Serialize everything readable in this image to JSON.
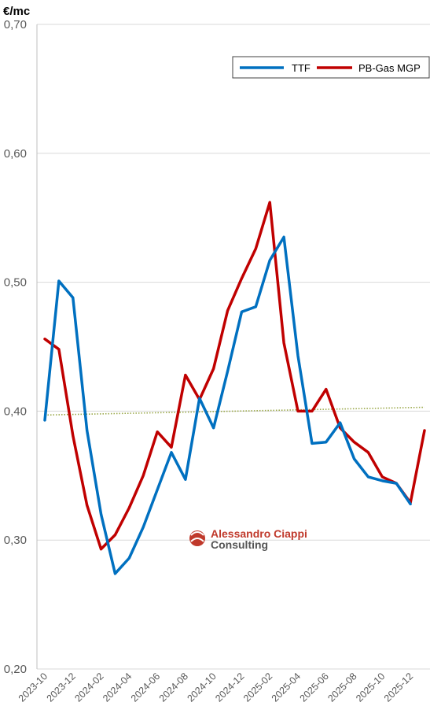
{
  "chart_data": {
    "type": "line",
    "unit_label": "€/mc",
    "ylim": [
      0.2,
      0.7
    ],
    "y_ticks": [
      "0,20",
      "0,30",
      "0,40",
      "0,50",
      "0,60",
      "0,70"
    ],
    "x_tick_labels": [
      "2023-10",
      "2023-12",
      "2024-02",
      "2024-04",
      "2024-06",
      "2024-08",
      "2024-10",
      "2024-12",
      "2025-02",
      "2025-04",
      "2025-06",
      "2025-08",
      "2025-10",
      "2025-12"
    ],
    "x": [
      "2023-10",
      "2023-11",
      "2023-12",
      "2024-01",
      "2024-02",
      "2024-03",
      "2024-04",
      "2024-05",
      "2024-06",
      "2024-07",
      "2024-08",
      "2024-09",
      "2024-10",
      "2024-11",
      "2024-12",
      "2025-01",
      "2025-02",
      "2025-03",
      "2025-04",
      "2025-05",
      "2025-06",
      "2025-07",
      "2025-08",
      "2025-09",
      "2025-10",
      "2025-11",
      "2025-12",
      "2026-01"
    ],
    "grid": true,
    "legend_position": "top-right",
    "series": [
      {
        "name": "TTF",
        "color": "#0070c0",
        "values": [
          0.393,
          0.501,
          0.488,
          0.385,
          0.32,
          0.274,
          0.286,
          0.31,
          0.339,
          0.368,
          0.347,
          0.41,
          0.387,
          0.431,
          0.477,
          0.481,
          0.517,
          0.535,
          0.443,
          0.375,
          0.376,
          0.391,
          0.363,
          0.349,
          0.346,
          0.344,
          0.328,
          null
        ]
      },
      {
        "name": "PB-Gas MGP",
        "color": "#c00000",
        "values": [
          0.456,
          0.448,
          0.381,
          0.327,
          0.293,
          0.304,
          0.325,
          0.35,
          0.384,
          0.372,
          0.428,
          0.409,
          0.433,
          0.478,
          0.503,
          0.526,
          0.562,
          0.453,
          0.4,
          0.4,
          0.417,
          0.387,
          0.376,
          0.368,
          0.349,
          0.344,
          0.329,
          0.385
        ]
      }
    ],
    "trendline": {
      "color": "#9aa84a",
      "values_at_ends": [
        0.397,
        0.403
      ]
    }
  },
  "watermark": {
    "line1": "Alessandro Ciappi",
    "line2": "Consulting",
    "logo_color": "#c0392b"
  }
}
